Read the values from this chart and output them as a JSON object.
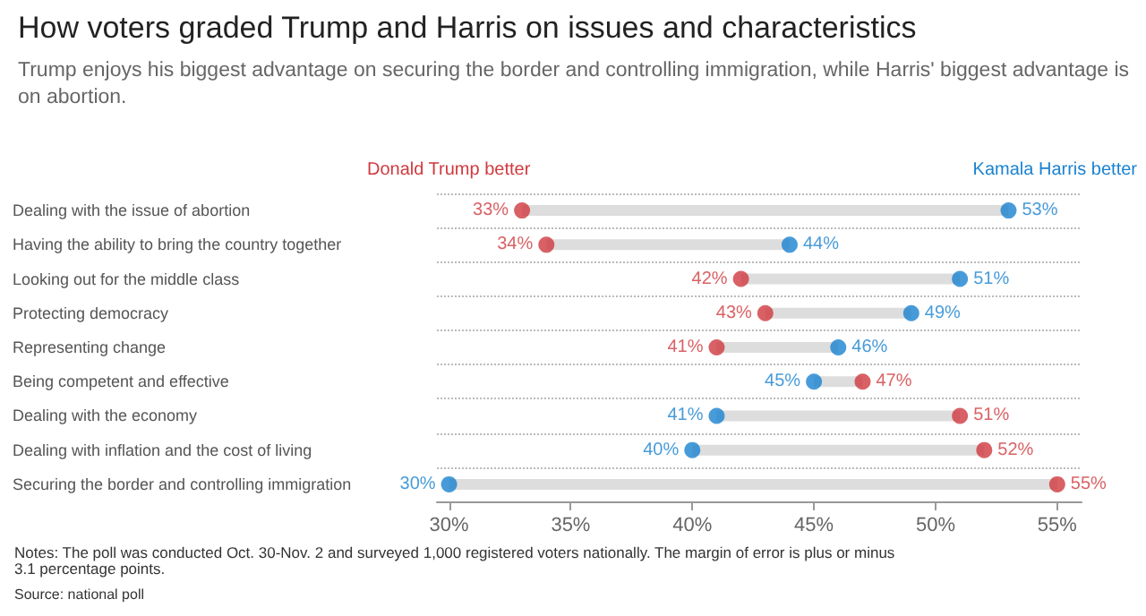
{
  "chart_data": {
    "type": "scatter",
    "title": "How voters graded Trump and Harris on issues and characteristics",
    "subtitle": "Trump enjoys his biggest advantage on securing the border and controlling immigration, while Harris' biggest advantage is on abortion.",
    "annotations": [
      "Notes: The poll was conducted Oct. 30-Nov. 2 and surveyed 1,000 registered voters nationally. The margin of error is plus or minus 3.1 percentage points.",
      "Source: national poll"
    ],
    "orientation": "horizontal",
    "categories": [
      "Dealing with the issue of abortion",
      "Having the ability to bring the country together",
      "Looking out for the middle class",
      "Protecting democracy",
      "Representing change",
      "Being competent and effective",
      "Dealing with the economy",
      "Dealing with inflation and the cost of living",
      "Securing the border and controlling immigration"
    ],
    "series": [
      {
        "type": "bar",
        "color": "#dddddd",
        "base": [
          33,
          34,
          42,
          43,
          41,
          45,
          41,
          40,
          30
        ],
        "values": [
          20,
          10,
          9,
          6,
          5,
          2,
          10,
          12,
          25
        ]
      },
      {
        "name": "Donald Trump better",
        "color": "#d0393e",
        "values": [
          33,
          34,
          42,
          43,
          41,
          47,
          51,
          52,
          55
        ],
        "value_labels": [
          "33%",
          "34%",
          "42%",
          "43%",
          "41%",
          "47%",
          "51%",
          "52%",
          "55%"
        ]
      },
      {
        "name": "Kamala Harris better",
        "color": "#1a82d0",
        "values": [
          53,
          44,
          51,
          49,
          46,
          45,
          41,
          40,
          30
        ],
        "value_labels": [
          "53%",
          "44%",
          "51%",
          "49%",
          "46%",
          "45%",
          "41%",
          "40%",
          "30%"
        ]
      }
    ],
    "xlim": [
      29.5,
      56
    ],
    "xticks": [
      {
        "value": 30,
        "label": "30%"
      },
      {
        "value": 35,
        "label": "35%"
      },
      {
        "value": 40,
        "label": "40%"
      },
      {
        "value": 45,
        "label": "45%"
      },
      {
        "value": 50,
        "label": "50%"
      },
      {
        "value": 55,
        "label": "55%"
      }
    ],
    "grid": "y",
    "legend": "top",
    "marker": "circle"
  }
}
